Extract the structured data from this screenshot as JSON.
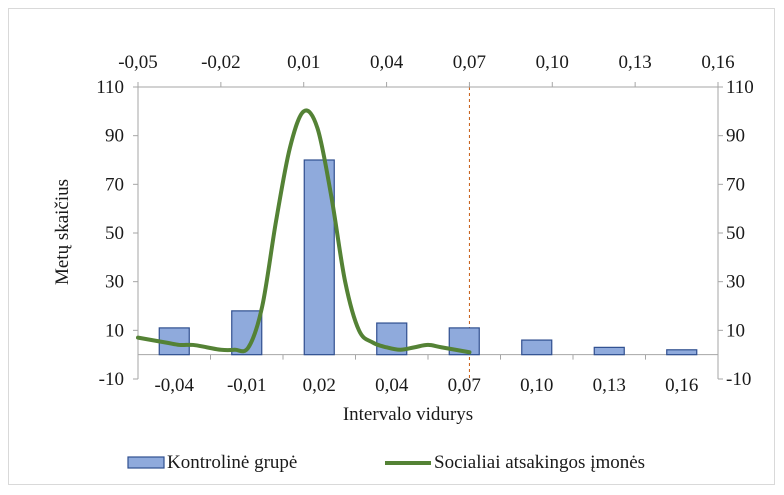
{
  "chart_data": {
    "type": "bar",
    "title": "",
    "xlabel": "Intervalo vidurys",
    "ylabel": "Metų skaičius",
    "categories": [
      "-0,04",
      "-0,01",
      "0,02",
      "0,04",
      "0,07",
      "0,10",
      "0,13",
      "0,16"
    ],
    "ylim": [
      -10,
      110
    ],
    "yticks": [
      "-10",
      "10",
      "30",
      "50",
      "70",
      "90",
      "110"
    ],
    "ytick_values": [
      -10,
      10,
      30,
      50,
      70,
      90,
      110
    ],
    "secondary_y_ticks": [
      "-10",
      "10",
      "30",
      "50",
      "70",
      "90",
      "110"
    ],
    "secondary_x_ticks": [
      "-0,05",
      "-0,02",
      "0,01",
      "0,04",
      "0,07",
      "0,10",
      "0,13",
      "0,16"
    ],
    "secondary_x_values": [
      -0.05,
      -0.02,
      0.01,
      0.04,
      0.07,
      0.1,
      0.13,
      0.16
    ],
    "secondary_xlim": [
      -0.05,
      0.16
    ],
    "reference_line_x": 0.07,
    "series": [
      {
        "name": "Kontrolinė grupė",
        "type": "bar",
        "color": "#8faadc",
        "edge_color": "#2f4f8f",
        "values": [
          11,
          18,
          80,
          13,
          11,
          6,
          3,
          2
        ]
      },
      {
        "name": "Socialiai atsakingos įmonės",
        "type": "line",
        "color": "#548235",
        "x": [
          -0.05,
          -0.04,
          -0.035,
          -0.03,
          -0.025,
          -0.02,
          -0.015,
          -0.01,
          -0.005,
          0.0,
          0.005,
          0.01,
          0.015,
          0.02,
          0.025,
          0.03,
          0.035,
          0.04,
          0.045,
          0.05,
          0.055,
          0.06,
          0.07
        ],
        "values": [
          7,
          5,
          4,
          4,
          3,
          2,
          2,
          3,
          20,
          55,
          85,
          100,
          93,
          65,
          30,
          10,
          5,
          3,
          2,
          3,
          4,
          3,
          1
        ]
      }
    ],
    "grid": false,
    "legend": "bottom"
  }
}
